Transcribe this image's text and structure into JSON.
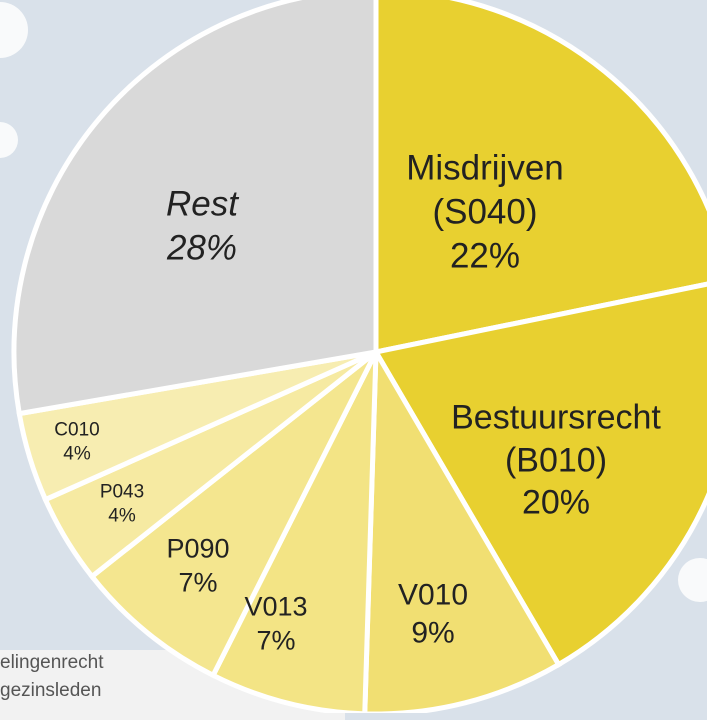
{
  "chart_data": {
    "type": "pie",
    "categories": [
      "Misdrijven (S040)",
      "Bestuursrecht (B010)",
      "V010",
      "V013",
      "P090",
      "P043",
      "C010",
      "Rest"
    ],
    "values": [
      22,
      20,
      9,
      7,
      7,
      4,
      4,
      28
    ],
    "value_labels": [
      "22%",
      "20%",
      "9%",
      "7%",
      "7%",
      "4%",
      "4%",
      "28%"
    ],
    "colors": [
      "#e8d030",
      "#e8d030",
      "#f1df72",
      "#f3e485",
      "#f4e68f",
      "#f6eaa2",
      "#f7edb1",
      "#d9d9d9"
    ],
    "legend_fragments": [
      "elingenrecht",
      "gezinsleden"
    ]
  }
}
